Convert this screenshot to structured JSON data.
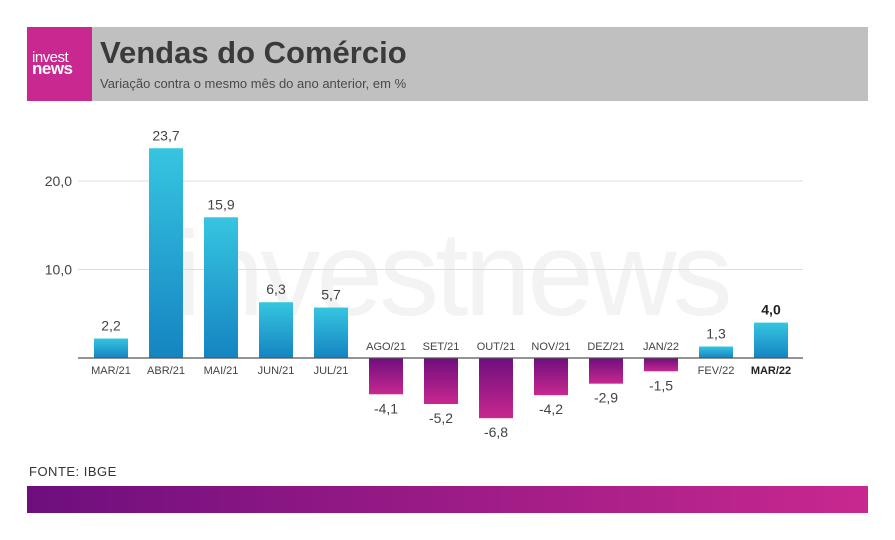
{
  "header": {
    "logo_line1": "invest",
    "logo_line2": "news",
    "title": "Vendas do Comércio",
    "subtitle": "Variação contra o mesmo mês do ano anterior, em %"
  },
  "watermark": "investnews",
  "source": "FONTE: IBGE",
  "colors": {
    "positive_top": "#36c5e0",
    "positive_bottom": "#1584c2",
    "negative_top": "#6e0e7e",
    "negative_bottom": "#c8288f",
    "header_bg": "#c0c0c0",
    "brand": "#c8288f"
  },
  "chart_data": {
    "type": "bar",
    "categories": [
      "MAR/21",
      "ABR/21",
      "MAI/21",
      "JUN/21",
      "JUL/21",
      "AGO/21",
      "SET/21",
      "OUT/21",
      "NOV/21",
      "DEZ/21",
      "JAN/22",
      "FEV/22",
      "MAR/22"
    ],
    "values": [
      2.2,
      23.7,
      15.9,
      6.3,
      5.7,
      -4.1,
      -5.2,
      -6.8,
      -4.2,
      -2.9,
      -1.5,
      1.3,
      4.0
    ],
    "value_labels": [
      "2,2",
      "23,7",
      "15,9",
      "6,3",
      "5,7",
      "-4,1",
      "-5,2",
      "-6,8",
      "-4,2",
      "-2,9",
      "-1,5",
      "1,3",
      "4,0"
    ],
    "highlight_index": 12,
    "yticks": [
      10,
      20
    ],
    "ytick_labels": [
      "10,0",
      "20,0"
    ],
    "ylim": [
      -8,
      25
    ],
    "grid": true
  }
}
